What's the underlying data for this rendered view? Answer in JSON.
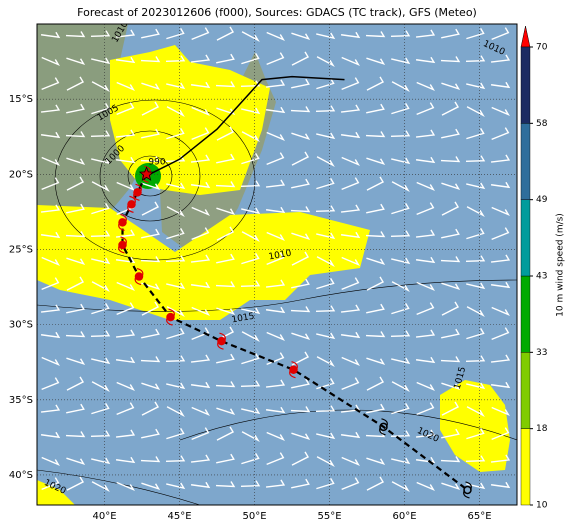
{
  "title": "Forecast of 2023012606 (f000), Sources: GDACS (TC track), GFS (Meteo)",
  "map": {
    "xlim": [
      35.5,
      67.5
    ],
    "ylim": [
      -42,
      -10
    ],
    "xticks": [
      {
        "value": 40,
        "label": "40°E"
      },
      {
        "value": 45,
        "label": "45°E"
      },
      {
        "value": 50,
        "label": "50°E"
      },
      {
        "value": 55,
        "label": "55°E"
      },
      {
        "value": 60,
        "label": "60°E"
      },
      {
        "value": 65,
        "label": "65°E"
      }
    ],
    "yticks": [
      {
        "value": -15,
        "label": "15°S"
      },
      {
        "value": -20,
        "label": "20°S"
      },
      {
        "value": -25,
        "label": "25°S"
      },
      {
        "value": -30,
        "label": "30°S"
      },
      {
        "value": -35,
        "label": "35°S"
      },
      {
        "value": -40,
        "label": "40°S"
      }
    ],
    "track": {
      "lon": [
        42.8,
        42.2,
        41.8,
        41.2,
        41.2,
        42.3,
        44.4,
        47.8,
        52.6,
        58.6,
        64.2
      ],
      "lat": [
        -20,
        -21.2,
        -22,
        -23.2,
        -24.7,
        -26.8,
        -29.5,
        -31.1,
        -33,
        -36.8,
        -41
      ]
    },
    "past_track": {
      "lon": [
        56,
        52.5,
        50.5,
        47.5,
        45,
        43
      ],
      "lat": [
        -13.7,
        -13.5,
        -13.7,
        -17,
        -19,
        -20
      ]
    },
    "isobar_labels": [
      "1010",
      "1005",
      "1000",
      "990",
      "1010",
      "1015",
      "1015",
      "1020",
      "1020",
      "1010"
    ]
  },
  "colorbar": {
    "label": "10 m wind speed (m/s)",
    "levels": [
      10,
      18,
      33,
      43,
      49,
      58,
      70
    ],
    "colors": [
      "#ffff00",
      "#80cc00",
      "#00aa00",
      "#009c9c",
      "#2f6e9c",
      "#1c2b62"
    ]
  }
}
